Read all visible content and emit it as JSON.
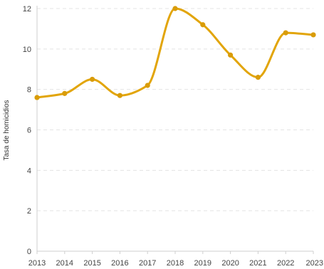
{
  "chart_data": {
    "type": "line",
    "ylabel": "Tasa de homicidios",
    "xlabel": "",
    "x": [
      "2013",
      "2014",
      "2015",
      "2016",
      "2017",
      "2018",
      "2019",
      "2020",
      "2021",
      "2022",
      "2023"
    ],
    "series": [
      {
        "values": [
          7.6,
          7.8,
          8.5,
          7.7,
          8.2,
          12.0,
          11.2,
          9.7,
          8.6,
          10.8,
          10.7
        ]
      }
    ],
    "ylim": [
      0,
      12
    ],
    "yticks": [
      0,
      2,
      4,
      6,
      8,
      10,
      12
    ],
    "grid": true,
    "legend": "none",
    "colors": {
      "line": "#e2a50a",
      "marker": "#d99c08"
    }
  }
}
